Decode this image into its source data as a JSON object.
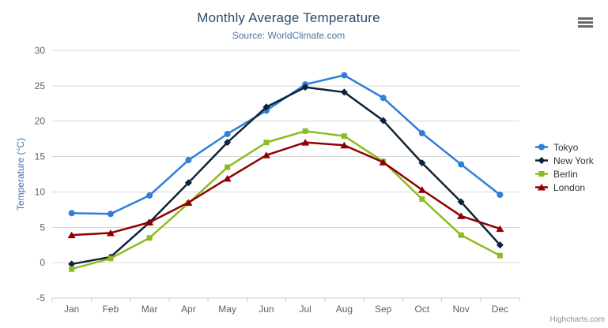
{
  "chart": {
    "credits": "Highcharts.com"
  },
  "export_menu": {
    "icon": "hamburger-icon"
  },
  "chart_data": {
    "type": "line",
    "title": "Monthly Average Temperature",
    "subtitle": "Source: WorldClimate.com",
    "xlabel": "",
    "ylabel": "Temperature (°C)",
    "ylim": [
      -5,
      30
    ],
    "ytick_interval": 5,
    "grid": true,
    "legend_position": "right",
    "categories": [
      "Jan",
      "Feb",
      "Mar",
      "Apr",
      "May",
      "Jun",
      "Jul",
      "Aug",
      "Sep",
      "Oct",
      "Nov",
      "Dec"
    ],
    "series": [
      {
        "name": "Tokyo",
        "color": "#2f7ed8",
        "marker": "circle",
        "values": [
          7.0,
          6.9,
          9.5,
          14.5,
          18.2,
          21.5,
          25.2,
          26.5,
          23.3,
          18.3,
          13.9,
          9.6
        ]
      },
      {
        "name": "New York",
        "color": "#0d233a",
        "marker": "diamond",
        "values": [
          -0.2,
          0.8,
          5.7,
          11.3,
          17.0,
          22.0,
          24.8,
          24.1,
          20.1,
          14.1,
          8.6,
          2.5
        ]
      },
      {
        "name": "Berlin",
        "color": "#8bbc21",
        "marker": "square",
        "values": [
          -0.9,
          0.6,
          3.5,
          8.4,
          13.5,
          17.0,
          18.6,
          17.9,
          14.3,
          9.0,
          3.9,
          1.0
        ]
      },
      {
        "name": "London",
        "color": "#910000",
        "marker": "triangle",
        "values": [
          3.9,
          4.2,
          5.7,
          8.5,
          11.9,
          15.2,
          17.0,
          16.6,
          14.2,
          10.3,
          6.6,
          4.8
        ]
      }
    ]
  },
  "colors": {
    "title": "#274b6d",
    "subtitle": "#4d759e",
    "axis_title": "#4572a7",
    "axis_label": "#606060",
    "grid": "#d8d8d8",
    "axis_line": "#c0d0e0",
    "legend_text": "#333333",
    "credits": "#909090",
    "menu": "#666666",
    "background": "#ffffff"
  }
}
